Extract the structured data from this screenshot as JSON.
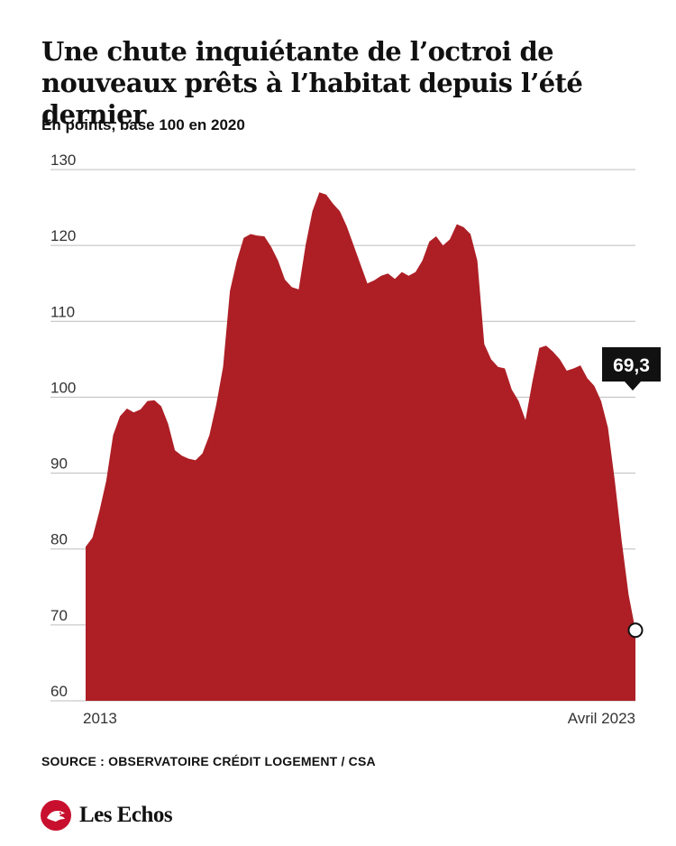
{
  "title": "Une chute inquiétante de l’octroi de nouveaux prêts à l’habitat depuis l’été dernier",
  "subtitle": "En points, base 100 en 2020",
  "source": "SOURCE : OBSERVATOIRE CRÉDIT LOGEMENT / CSA",
  "brand": {
    "name": "Les Echos",
    "logo_icon": "les-echos-logo-icon"
  },
  "colors": {
    "area": "#ad1f25",
    "grid": "#bdbdbd",
    "callout_bg": "#111111",
    "callout_text": "#ffffff"
  },
  "chart_data": {
    "type": "area",
    "title": "",
    "xlabel": "",
    "ylabel": "",
    "ylim": [
      60,
      130
    ],
    "yticks": [
      60,
      70,
      80,
      90,
      100,
      110,
      120,
      130
    ],
    "grid": true,
    "x_tick_labels": [
      "2013",
      "Avril 2023"
    ],
    "end_label": "69,3",
    "series": [
      {
        "values": [
          80.3,
          81.5,
          85,
          89,
          95,
          97.5,
          98.5,
          98,
          98.4,
          99.5,
          99.6,
          98.8,
          96.5,
          93,
          92.3,
          91.9,
          91.7,
          92.6,
          95,
          99,
          104,
          114,
          118,
          121,
          121.5,
          121.3,
          121.2,
          119.8,
          118,
          115.5,
          114.5,
          114.2,
          120,
          124.5,
          127,
          126.7,
          125.5,
          124.5,
          122.5,
          120,
          117.5,
          115,
          115.4,
          116,
          116.3,
          115.6,
          116.5,
          116,
          116.5,
          118,
          120.5,
          121.2,
          120,
          120.8,
          122.8,
          122.4,
          121.5,
          118,
          107,
          105,
          104,
          103.8,
          101,
          99.5,
          97,
          102,
          106.5,
          106.8,
          106,
          105,
          103.5,
          103.8,
          104.2,
          102.5,
          101.5,
          99.5,
          96,
          89,
          81,
          74,
          69.3
        ]
      }
    ]
  }
}
